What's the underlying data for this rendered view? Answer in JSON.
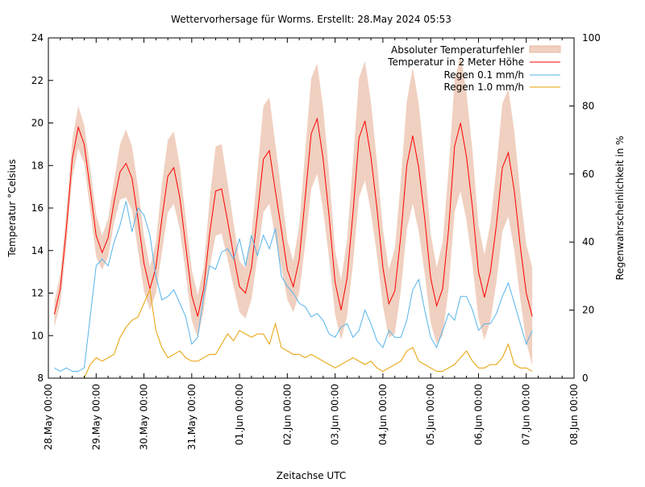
{
  "chart_data": {
    "type": "line",
    "title": "Wettervorhersage für Worms. Erstellt: 28.May 2024 05:53",
    "xlabel": "Zeitachse UTC",
    "ylabel": "Temperatur °Celsius",
    "y2label": "Regenwahrscheinlichkeit in %",
    "xlim": [
      "2024-05-28T00:00",
      "2024-06-08T00:00"
    ],
    "ylim": [
      8,
      24
    ],
    "y2lim": [
      0,
      100
    ],
    "grid": false,
    "legend_position": "top-right",
    "x_tick_labels": [
      "28.May 00:00",
      "29.May 00:00",
      "30.May 00:00",
      "31.May 00:00",
      "01.Jun 00:00",
      "02.Jun 00:00",
      "03.Jun 00:00",
      "04.Jun 00:00",
      "05.Jun 00:00",
      "06.Jun 00:00",
      "07.Jun 00:00",
      "08.Jun 00:00"
    ],
    "y_tick_labels": [
      "8",
      "10",
      "12",
      "14",
      "16",
      "18",
      "20",
      "22",
      "24"
    ],
    "y2_tick_labels": [
      "0",
      "20",
      "40",
      "60",
      "80",
      "100"
    ],
    "x": [
      "2024-05-28T03:00",
      "2024-05-28T06:00",
      "2024-05-28T09:00",
      "2024-05-28T12:00",
      "2024-05-28T15:00",
      "2024-05-28T18:00",
      "2024-05-28T21:00",
      "2024-05-29T00:00",
      "2024-05-29T03:00",
      "2024-05-29T06:00",
      "2024-05-29T09:00",
      "2024-05-29T12:00",
      "2024-05-29T15:00",
      "2024-05-29T18:00",
      "2024-05-29T21:00",
      "2024-05-30T00:00",
      "2024-05-30T03:00",
      "2024-05-30T06:00",
      "2024-05-30T09:00",
      "2024-05-30T12:00",
      "2024-05-30T15:00",
      "2024-05-30T18:00",
      "2024-05-30T21:00",
      "2024-05-31T00:00",
      "2024-05-31T03:00",
      "2024-05-31T06:00",
      "2024-05-31T09:00",
      "2024-05-31T12:00",
      "2024-05-31T15:00",
      "2024-05-31T18:00",
      "2024-05-31T21:00",
      "2024-06-01T00:00",
      "2024-06-01T03:00",
      "2024-06-01T06:00",
      "2024-06-01T09:00",
      "2024-06-01T12:00",
      "2024-06-01T15:00",
      "2024-06-01T18:00",
      "2024-06-01T21:00",
      "2024-06-02T00:00",
      "2024-06-02T03:00",
      "2024-06-02T06:00",
      "2024-06-02T09:00",
      "2024-06-02T12:00",
      "2024-06-02T15:00",
      "2024-06-02T18:00",
      "2024-06-02T21:00",
      "2024-06-03T00:00",
      "2024-06-03T03:00",
      "2024-06-03T06:00",
      "2024-06-03T09:00",
      "2024-06-03T12:00",
      "2024-06-03T15:00",
      "2024-06-03T18:00",
      "2024-06-03T21:00",
      "2024-06-04T00:00",
      "2024-06-04T03:00",
      "2024-06-04T06:00",
      "2024-06-04T09:00",
      "2024-06-04T12:00",
      "2024-06-04T15:00",
      "2024-06-04T18:00",
      "2024-06-04T21:00",
      "2024-06-05T00:00",
      "2024-06-05T03:00",
      "2024-06-05T06:00",
      "2024-06-05T09:00",
      "2024-06-05T12:00",
      "2024-06-05T15:00",
      "2024-06-05T18:00",
      "2024-06-05T21:00",
      "2024-06-06T00:00",
      "2024-06-06T03:00",
      "2024-06-06T06:00",
      "2024-06-06T09:00",
      "2024-06-06T12:00",
      "2024-06-06T15:00",
      "2024-06-06T18:00",
      "2024-06-06T21:00",
      "2024-06-07T00:00",
      "2024-06-07T03:00"
    ],
    "series": [
      {
        "name": "Absoluter Temperaturfehler",
        "kind": "band",
        "axis": "left",
        "color": "#f0d0c0",
        "values": [
          0.6,
          0.7,
          0.8,
          0.9,
          1.0,
          0.9,
          1.0,
          1.0,
          0.8,
          0.9,
          1.0,
          1.3,
          1.6,
          1.5,
          1.5,
          1.3,
          1.0,
          1.2,
          1.6,
          1.7,
          1.7,
          1.5,
          1.3,
          1.2,
          1.0,
          1.0,
          1.6,
          2.1,
          2.1,
          1.8,
          1.5,
          1.2,
          1.2,
          1.5,
          2.0,
          2.5,
          2.5,
          2.2,
          1.8,
          1.4,
          1.2,
          1.6,
          2.2,
          2.6,
          2.6,
          2.4,
          2.0,
          1.5,
          1.4,
          1.8,
          2.4,
          2.8,
          2.8,
          2.6,
          2.2,
          1.8,
          1.6,
          2.0,
          2.6,
          3.0,
          3.2,
          3.0,
          2.6,
          2.1,
          1.8,
          2.2,
          2.8,
          3.1,
          3.2,
          3.0,
          2.7,
          2.2,
          2.0,
          2.3,
          2.7,
          3.0,
          3.0,
          2.8,
          2.5,
          2.3,
          2.3
        ]
      },
      {
        "name": "Temperatur in 2 Meter Höhe",
        "kind": "line",
        "axis": "left",
        "color": "#ff0000",
        "values": [
          11.0,
          12.2,
          15.0,
          18.3,
          19.8,
          19.0,
          16.9,
          14.7,
          13.9,
          14.6,
          16.3,
          17.7,
          18.1,
          17.4,
          15.5,
          13.4,
          12.2,
          13.2,
          15.5,
          17.5,
          17.9,
          16.5,
          14.2,
          11.9,
          10.9,
          12.2,
          14.8,
          16.8,
          16.9,
          15.4,
          13.8,
          12.3,
          12.0,
          13.2,
          15.7,
          18.3,
          18.7,
          16.8,
          15.0,
          13.1,
          12.3,
          13.6,
          16.5,
          19.5,
          20.2,
          18.3,
          15.6,
          12.5,
          11.2,
          12.7,
          15.8,
          19.3,
          20.1,
          18.4,
          16.0,
          13.2,
          11.5,
          12.1,
          14.7,
          18.0,
          19.4,
          17.9,
          15.5,
          12.7,
          11.4,
          12.2,
          15.0,
          18.9,
          20.0,
          18.4,
          16.0,
          13.0,
          11.8,
          13.0,
          15.2,
          17.9,
          18.6,
          16.8,
          14.2,
          12.0,
          10.9
        ]
      },
      {
        "name": "Regen 0.1 mm/h",
        "kind": "line",
        "axis": "right",
        "color": "#56b4e9",
        "values": [
          3,
          2,
          3,
          2,
          2,
          3,
          18,
          33,
          35,
          33,
          40,
          45,
          52,
          43,
          50,
          48,
          42,
          30,
          23,
          24,
          26,
          22,
          18,
          10,
          12,
          24,
          33,
          32,
          37,
          38,
          35,
          41,
          33,
          42,
          36,
          42,
          38,
          44,
          30,
          27,
          25,
          22,
          21,
          18,
          19,
          17,
          13,
          12,
          15,
          16,
          12,
          14,
          20,
          16,
          11,
          9,
          14,
          12,
          12,
          17,
          26,
          29,
          20,
          12,
          9,
          14,
          19,
          17,
          24,
          24,
          20,
          14,
          16,
          16,
          19,
          24,
          28,
          22,
          16,
          10,
          14
        ]
      },
      {
        "name": "Regen 1.0 mm/h",
        "kind": "line",
        "axis": "right",
        "color": "#e69f00",
        "values": [
          null,
          null,
          null,
          null,
          null,
          0,
          4,
          6,
          5,
          6,
          7,
          12,
          15,
          17,
          18,
          22,
          26,
          14,
          9,
          6,
          7,
          8,
          6,
          5,
          5,
          6,
          7,
          7,
          10,
          13,
          11,
          14,
          13,
          12,
          13,
          13,
          10,
          16,
          9,
          8,
          7,
          7,
          6,
          7,
          6,
          5,
          4,
          3,
          4,
          5,
          6,
          5,
          4,
          5,
          3,
          2,
          3,
          4,
          5,
          8,
          9,
          5,
          4,
          3,
          2,
          2,
          3,
          4,
          6,
          8,
          5,
          3,
          3,
          4,
          4,
          6,
          10,
          4,
          3,
          3,
          2
        ]
      }
    ]
  }
}
